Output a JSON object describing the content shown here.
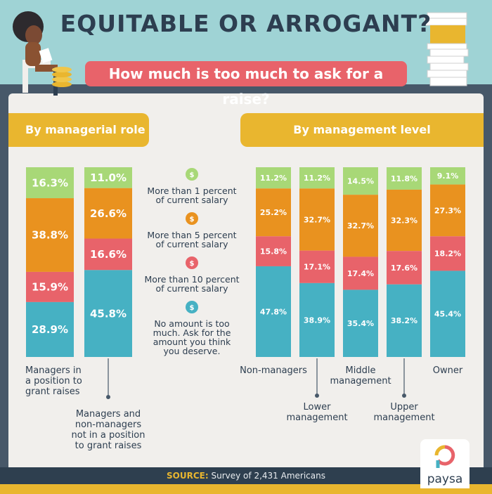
{
  "header": {
    "title": "EQUITABLE OR ARROGANT?",
    "subtitle": "How much is too much to ask for a raise?"
  },
  "tabs": {
    "left": "By managerial role",
    "right": "By management level"
  },
  "legend": [
    {
      "label": "More than 1 percent of current salary",
      "lines": [
        "More than 1 percent",
        "of current salary"
      ],
      "color": "#a8d877"
    },
    {
      "label": "More than 5 percent of current salary",
      "lines": [
        "More than 5 percent",
        "of current salary"
      ],
      "color": "#e9921f"
    },
    {
      "label": "More than 10 percent of current salary",
      "lines": [
        "More than 10 percent",
        "of current salary"
      ],
      "color": "#e8636a"
    },
    {
      "label": "No amount is too much. Ask for the amount you think you deserve.",
      "lines": [
        "No amount is too",
        "much. Ask for the",
        "amount you think",
        "you deserve."
      ],
      "color": "#46b1c3"
    }
  ],
  "legend_icon_glyph": "$",
  "chart_data": [
    {
      "type": "bar",
      "stacked": true,
      "title": "By managerial role",
      "categories": [
        "Managers in a position to grant raises",
        "Managers and non-managers not in a position to grant raises"
      ],
      "category_lines": [
        [
          "Managers in",
          "a position to",
          "grant raises"
        ],
        [
          "Managers and",
          "non-managers",
          "not in a position",
          "to grant raises"
        ]
      ],
      "series": [
        {
          "name": "More than 1 percent of current salary",
          "values": [
            16.3,
            11.0
          ]
        },
        {
          "name": "More than 5 percent of current salary",
          "values": [
            38.8,
            26.6
          ]
        },
        {
          "name": "More than 10 percent of current salary",
          "values": [
            15.9,
            16.6
          ]
        },
        {
          "name": "No amount is too much. Ask for the amount you think you deserve.",
          "values": [
            28.9,
            45.8
          ]
        }
      ],
      "value_labels": [
        [
          "16.3%",
          "38.8%",
          "15.9%",
          "28.9%"
        ],
        [
          "11.0%",
          "26.6%",
          "16.6%",
          "45.8%"
        ]
      ],
      "ylim": [
        0,
        100
      ]
    },
    {
      "type": "bar",
      "stacked": true,
      "title": "By management level",
      "categories": [
        "Non-managers",
        "Lower management",
        "Middle management",
        "Upper management",
        "Owner"
      ],
      "category_lines": [
        [
          "Non-managers"
        ],
        [
          "Lower",
          "management"
        ],
        [
          "Middle",
          "management"
        ],
        [
          "Upper",
          "management"
        ],
        [
          "Owner"
        ]
      ],
      "series": [
        {
          "name": "More than 1 percent of current salary",
          "values": [
            11.2,
            11.2,
            14.5,
            11.8,
            9.1
          ]
        },
        {
          "name": "More than 5 percent of current salary",
          "values": [
            25.2,
            32.7,
            32.7,
            32.3,
            27.3
          ]
        },
        {
          "name": "More than 10 percent of current salary",
          "values": [
            15.8,
            17.1,
            17.4,
            17.6,
            18.2
          ]
        },
        {
          "name": "No amount is too much. Ask for the amount you think you deserve.",
          "values": [
            47.8,
            38.9,
            35.4,
            38.2,
            45.4
          ]
        }
      ],
      "value_labels": [
        [
          "11.2%",
          "25.2%",
          "15.8%",
          "47.8%"
        ],
        [
          "11.2%",
          "32.7%",
          "17.1%",
          "38.9%"
        ],
        [
          "14.5%",
          "32.7%",
          "17.4%",
          "35.4%"
        ],
        [
          "11.8%",
          "32.3%",
          "17.6%",
          "38.2%"
        ],
        [
          "9.1%",
          "27.3%",
          "18.2%",
          "45.4%"
        ]
      ],
      "ylim": [
        0,
        100
      ]
    }
  ],
  "source": {
    "prefix": "SOURCE:",
    "text": "Survey of 2,431 Americans"
  },
  "logo": {
    "text": "paysa"
  }
}
